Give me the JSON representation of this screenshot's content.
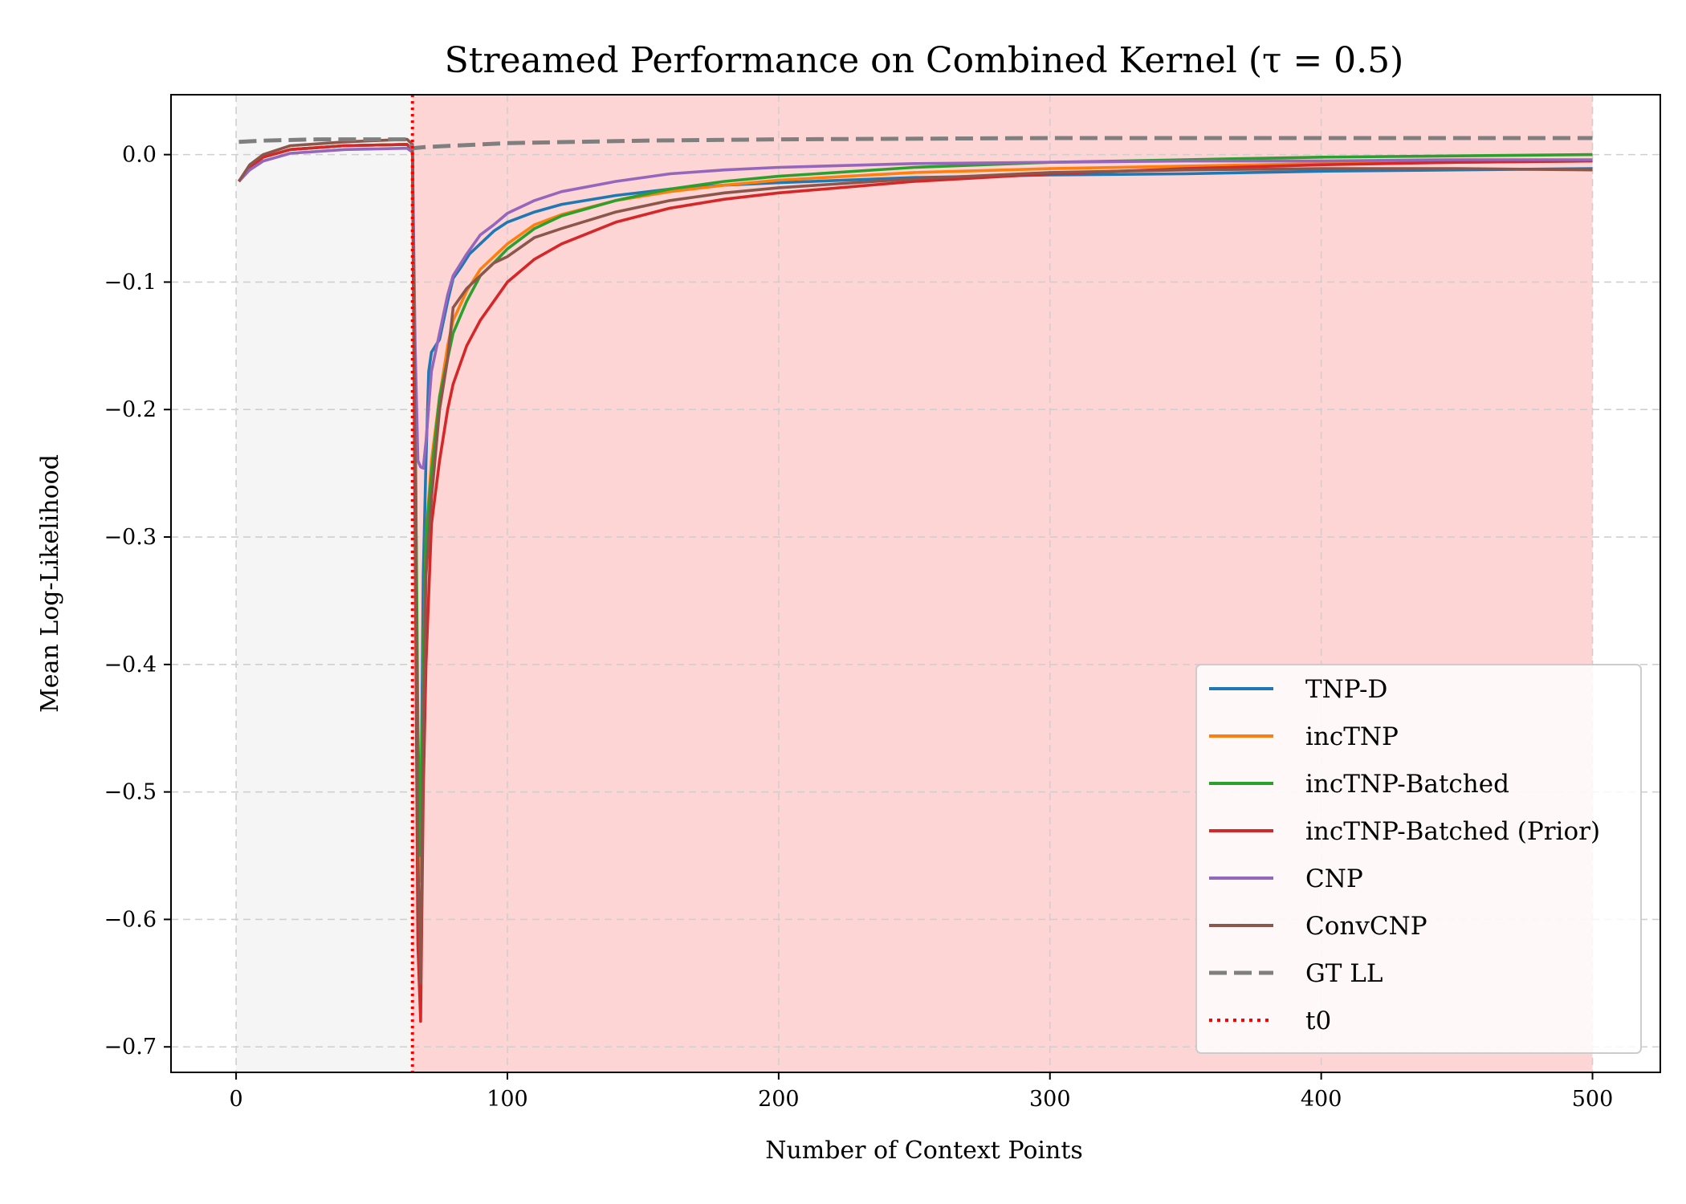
{
  "chart_data": {
    "type": "line",
    "title": "Streamed Performance on Combined Kernel (τ = 0.5)",
    "xlabel": "Number of Context Points",
    "ylabel": "Mean Log-Likelihood",
    "xlim": [
      -24,
      525
    ],
    "ylim": [
      -0.72,
      0.047
    ],
    "xticks": [
      0,
      100,
      200,
      300,
      400,
      500
    ],
    "xtick_labels": [
      "0",
      "100",
      "200",
      "300",
      "400",
      "500"
    ],
    "yticks": [
      0.0,
      -0.1,
      -0.2,
      -0.3,
      -0.4,
      -0.5,
      -0.6,
      -0.7
    ],
    "ytick_labels": [
      "0.0",
      "−0.1",
      "−0.2",
      "−0.3",
      "−0.4",
      "−0.5",
      "−0.6",
      "−0.7"
    ],
    "grid": true,
    "legend_position": "lower-right",
    "shaded_regions": [
      {
        "x_start": 0,
        "x_end": 65,
        "color": "#f5f5f5"
      },
      {
        "x_start": 65,
        "x_end": 500,
        "color": "#fdd5d5"
      }
    ],
    "t0": 65,
    "series": [
      {
        "name": "TNP-D",
        "color": "#1f77b4",
        "style": "solid",
        "points": [
          [
            1,
            -0.021
          ],
          [
            5,
            -0.01
          ],
          [
            10,
            -0.002
          ],
          [
            20,
            0.004
          ],
          [
            40,
            0.007
          ],
          [
            63,
            0.008
          ],
          [
            65,
            0.004
          ],
          [
            66,
            -0.2
          ],
          [
            67,
            -0.5
          ],
          [
            68,
            -0.55
          ],
          [
            69,
            -0.33
          ],
          [
            70,
            -0.24
          ],
          [
            71,
            -0.17
          ],
          [
            72,
            -0.155
          ],
          [
            75,
            -0.145
          ],
          [
            78,
            -0.115
          ],
          [
            80,
            -0.097
          ],
          [
            83,
            -0.088
          ],
          [
            86,
            -0.078
          ],
          [
            90,
            -0.07
          ],
          [
            95,
            -0.06
          ],
          [
            100,
            -0.053
          ],
          [
            110,
            -0.045
          ],
          [
            120,
            -0.039
          ],
          [
            140,
            -0.032
          ],
          [
            160,
            -0.027
          ],
          [
            180,
            -0.024
          ],
          [
            200,
            -0.022
          ],
          [
            250,
            -0.018
          ],
          [
            300,
            -0.016
          ],
          [
            350,
            -0.015
          ],
          [
            400,
            -0.013
          ],
          [
            450,
            -0.012
          ],
          [
            500,
            -0.011
          ]
        ]
      },
      {
        "name": "incTNP",
        "color": "#ff7f0e",
        "style": "solid",
        "points": [
          [
            1,
            -0.021
          ],
          [
            5,
            -0.01
          ],
          [
            10,
            -0.002
          ],
          [
            20,
            0.004
          ],
          [
            40,
            0.007
          ],
          [
            63,
            0.008
          ],
          [
            65,
            0.004
          ],
          [
            66,
            -0.2
          ],
          [
            67,
            -0.5
          ],
          [
            68,
            -0.57
          ],
          [
            69,
            -0.4
          ],
          [
            70,
            -0.3
          ],
          [
            72,
            -0.24
          ],
          [
            75,
            -0.19
          ],
          [
            78,
            -0.15
          ],
          [
            80,
            -0.13
          ],
          [
            85,
            -0.107
          ],
          [
            90,
            -0.09
          ],
          [
            95,
            -0.08
          ],
          [
            100,
            -0.07
          ],
          [
            110,
            -0.055
          ],
          [
            120,
            -0.047
          ],
          [
            140,
            -0.036
          ],
          [
            160,
            -0.029
          ],
          [
            180,
            -0.024
          ],
          [
            200,
            -0.02
          ],
          [
            250,
            -0.014
          ],
          [
            300,
            -0.011
          ],
          [
            350,
            -0.009
          ],
          [
            400,
            -0.007
          ],
          [
            450,
            -0.006
          ],
          [
            500,
            -0.005
          ]
        ]
      },
      {
        "name": "incTNP-Batched",
        "color": "#2ca02c",
        "style": "solid",
        "points": [
          [
            1,
            -0.021
          ],
          [
            5,
            -0.01
          ],
          [
            10,
            -0.002
          ],
          [
            20,
            0.004
          ],
          [
            40,
            0.007
          ],
          [
            63,
            0.008
          ],
          [
            65,
            0.004
          ],
          [
            66,
            -0.2
          ],
          [
            67,
            -0.45
          ],
          [
            68,
            -0.55
          ],
          [
            69,
            -0.4
          ],
          [
            70,
            -0.3
          ],
          [
            72,
            -0.25
          ],
          [
            75,
            -0.19
          ],
          [
            78,
            -0.16
          ],
          [
            80,
            -0.14
          ],
          [
            85,
            -0.115
          ],
          [
            90,
            -0.095
          ],
          [
            95,
            -0.085
          ],
          [
            100,
            -0.074
          ],
          [
            110,
            -0.058
          ],
          [
            120,
            -0.048
          ],
          [
            140,
            -0.036
          ],
          [
            160,
            -0.027
          ],
          [
            180,
            -0.021
          ],
          [
            200,
            -0.017
          ],
          [
            250,
            -0.01
          ],
          [
            300,
            -0.006
          ],
          [
            350,
            -0.004
          ],
          [
            400,
            -0.002
          ],
          [
            450,
            -0.001
          ],
          [
            500,
            0.0
          ]
        ]
      },
      {
        "name": "incTNP-Batched (Prior)",
        "color": "#d62728",
        "style": "solid",
        "points": [
          [
            1,
            -0.021
          ],
          [
            5,
            -0.01
          ],
          [
            10,
            -0.002
          ],
          [
            20,
            0.004
          ],
          [
            40,
            0.007
          ],
          [
            63,
            0.008
          ],
          [
            65,
            0.004
          ],
          [
            66,
            -0.3
          ],
          [
            67,
            -0.62
          ],
          [
            68,
            -0.68
          ],
          [
            69,
            -0.5
          ],
          [
            70,
            -0.4
          ],
          [
            72,
            -0.29
          ],
          [
            75,
            -0.24
          ],
          [
            78,
            -0.2
          ],
          [
            80,
            -0.18
          ],
          [
            85,
            -0.15
          ],
          [
            90,
            -0.13
          ],
          [
            95,
            -0.115
          ],
          [
            100,
            -0.1
          ],
          [
            110,
            -0.082
          ],
          [
            120,
            -0.07
          ],
          [
            140,
            -0.053
          ],
          [
            160,
            -0.042
          ],
          [
            180,
            -0.035
          ],
          [
            200,
            -0.03
          ],
          [
            250,
            -0.021
          ],
          [
            300,
            -0.015
          ],
          [
            350,
            -0.011
          ],
          [
            400,
            -0.008
          ],
          [
            450,
            -0.006
          ],
          [
            500,
            -0.005
          ]
        ]
      },
      {
        "name": "CNP",
        "color": "#9467bd",
        "style": "solid",
        "points": [
          [
            1,
            -0.021
          ],
          [
            5,
            -0.012
          ],
          [
            10,
            -0.005
          ],
          [
            20,
            0.001
          ],
          [
            40,
            0.004
          ],
          [
            63,
            0.005
          ],
          [
            65,
            0.002
          ],
          [
            66,
            -0.15
          ],
          [
            67,
            -0.24
          ],
          [
            68,
            -0.245
          ],
          [
            69,
            -0.246
          ],
          [
            70,
            -0.225
          ],
          [
            72,
            -0.17
          ],
          [
            75,
            -0.14
          ],
          [
            78,
            -0.11
          ],
          [
            80,
            -0.095
          ],
          [
            85,
            -0.078
          ],
          [
            90,
            -0.063
          ],
          [
            95,
            -0.055
          ],
          [
            100,
            -0.046
          ],
          [
            110,
            -0.036
          ],
          [
            120,
            -0.029
          ],
          [
            140,
            -0.021
          ],
          [
            160,
            -0.015
          ],
          [
            180,
            -0.012
          ],
          [
            200,
            -0.01
          ],
          [
            250,
            -0.007
          ],
          [
            300,
            -0.006
          ],
          [
            350,
            -0.005
          ],
          [
            400,
            -0.005
          ],
          [
            450,
            -0.004
          ],
          [
            500,
            -0.004
          ]
        ]
      },
      {
        "name": "ConvCNP",
        "color": "#8c564b",
        "style": "solid",
        "points": [
          [
            1,
            -0.021
          ],
          [
            5,
            -0.008
          ],
          [
            10,
            0.0
          ],
          [
            20,
            0.007
          ],
          [
            40,
            0.01
          ],
          [
            63,
            0.012
          ],
          [
            65,
            0.008
          ],
          [
            66,
            -0.25
          ],
          [
            67,
            -0.55
          ],
          [
            68,
            -0.65
          ],
          [
            69,
            -0.45
          ],
          [
            70,
            -0.33
          ],
          [
            72,
            -0.27
          ],
          [
            75,
            -0.2
          ],
          [
            78,
            -0.16
          ],
          [
            80,
            -0.12
          ],
          [
            85,
            -0.105
          ],
          [
            90,
            -0.095
          ],
          [
            95,
            -0.085
          ],
          [
            100,
            -0.08
          ],
          [
            110,
            -0.065
          ],
          [
            120,
            -0.058
          ],
          [
            140,
            -0.045
          ],
          [
            160,
            -0.036
          ],
          [
            180,
            -0.03
          ],
          [
            200,
            -0.026
          ],
          [
            250,
            -0.019
          ],
          [
            300,
            -0.014
          ],
          [
            350,
            -0.012
          ],
          [
            400,
            -0.011
          ],
          [
            450,
            -0.011
          ],
          [
            500,
            -0.012
          ]
        ]
      },
      {
        "name": "GT LL",
        "color": "#7f7f7f",
        "style": "dashed",
        "points": [
          [
            1,
            0.01
          ],
          [
            10,
            0.011
          ],
          [
            30,
            0.012
          ],
          [
            63,
            0.012
          ],
          [
            65,
            0.005
          ],
          [
            70,
            0.006
          ],
          [
            100,
            0.009
          ],
          [
            150,
            0.011
          ],
          [
            200,
            0.012
          ],
          [
            300,
            0.013
          ],
          [
            400,
            0.013
          ],
          [
            500,
            0.013
          ]
        ]
      },
      {
        "name": "t0",
        "color": "#ff0000",
        "style": "dotted",
        "vertical_x": 65
      }
    ]
  }
}
